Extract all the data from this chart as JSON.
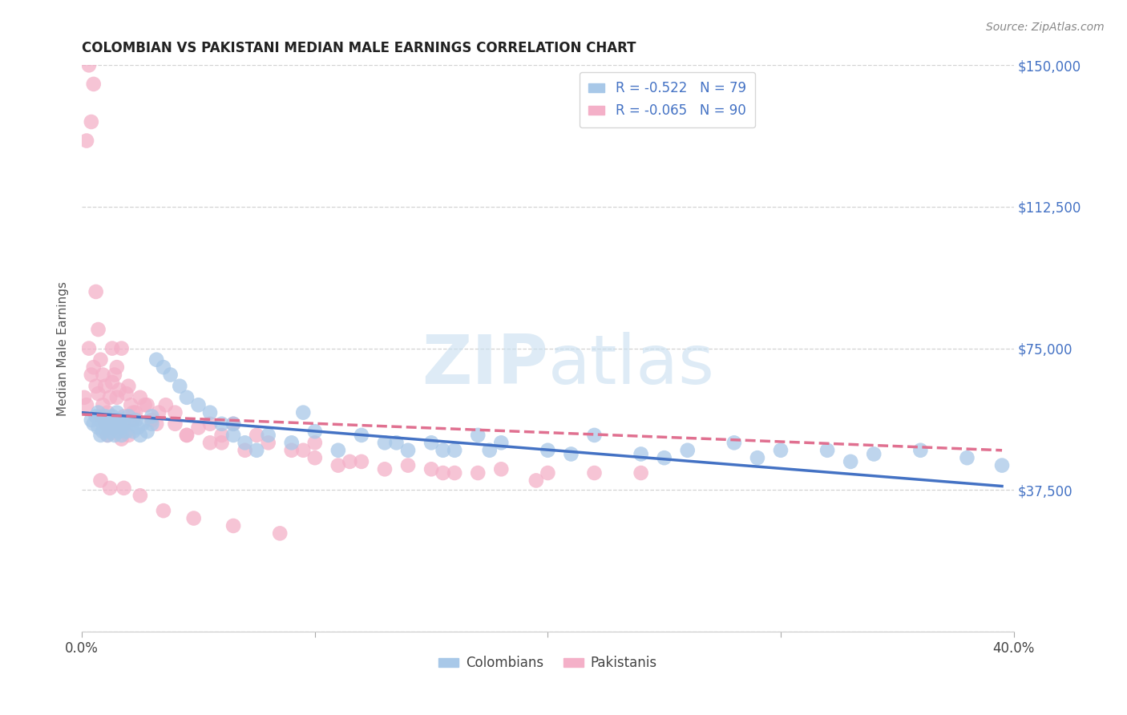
{
  "title": "COLOMBIAN VS PAKISTANI MEDIAN MALE EARNINGS CORRELATION CHART",
  "source": "Source: ZipAtlas.com",
  "ylabel": "Median Male Earnings",
  "xlim": [
    0.0,
    0.4
  ],
  "ylim": [
    0,
    150000
  ],
  "yticks": [
    0,
    37500,
    75000,
    112500,
    150000
  ],
  "ytick_labels": [
    "",
    "$37,500",
    "$75,000",
    "$112,500",
    "$150,000"
  ],
  "xticks": [
    0.0,
    0.1,
    0.2,
    0.3,
    0.4
  ],
  "xtick_labels": [
    "0.0%",
    "",
    "",
    "",
    "40.0%"
  ],
  "legend_r_labels": [
    "R = -0.522   N = 79",
    "R = -0.065   N = 90"
  ],
  "legend_bottom_labels": [
    "Colombians",
    "Pakistanis"
  ],
  "colombian_color": "#a8c8e8",
  "pakistani_color": "#f4b0c8",
  "colombian_line_color": "#4472c4",
  "pakistani_line_color": "#e07090",
  "background_color": "#ffffff",
  "grid_color": "#c8c8c8",
  "watermark_color": "#c8dff0",
  "colombian_scatter_x": [
    0.004,
    0.005,
    0.006,
    0.007,
    0.007,
    0.008,
    0.008,
    0.009,
    0.009,
    0.01,
    0.01,
    0.011,
    0.011,
    0.012,
    0.012,
    0.013,
    0.013,
    0.014,
    0.014,
    0.015,
    0.015,
    0.016,
    0.016,
    0.017,
    0.017,
    0.018,
    0.019,
    0.02,
    0.021,
    0.022,
    0.023,
    0.024,
    0.025,
    0.026,
    0.028,
    0.03,
    0.032,
    0.035,
    0.038,
    0.042,
    0.045,
    0.05,
    0.055,
    0.06,
    0.065,
    0.07,
    0.075,
    0.08,
    0.09,
    0.1,
    0.11,
    0.12,
    0.13,
    0.14,
    0.15,
    0.16,
    0.17,
    0.18,
    0.2,
    0.22,
    0.24,
    0.26,
    0.28,
    0.3,
    0.32,
    0.34,
    0.36,
    0.38,
    0.395,
    0.03,
    0.065,
    0.095,
    0.135,
    0.155,
    0.175,
    0.21,
    0.25,
    0.29,
    0.33
  ],
  "colombian_scatter_y": [
    56000,
    55000,
    57000,
    58000,
    54000,
    56000,
    52000,
    55000,
    53000,
    57000,
    54000,
    56000,
    52000,
    55000,
    53000,
    57000,
    54000,
    56000,
    52000,
    58000,
    55000,
    53000,
    56000,
    54000,
    52000,
    55000,
    53000,
    57000,
    55000,
    53000,
    56000,
    54000,
    52000,
    55000,
    53000,
    57000,
    72000,
    70000,
    68000,
    65000,
    62000,
    60000,
    58000,
    55000,
    52000,
    50000,
    48000,
    52000,
    50000,
    53000,
    48000,
    52000,
    50000,
    48000,
    50000,
    48000,
    52000,
    50000,
    48000,
    52000,
    47000,
    48000,
    50000,
    48000,
    48000,
    47000,
    48000,
    46000,
    44000,
    55000,
    55000,
    58000,
    50000,
    48000,
    48000,
    47000,
    46000,
    46000,
    45000
  ],
  "pakistani_scatter_x": [
    0.001,
    0.002,
    0.002,
    0.003,
    0.003,
    0.004,
    0.004,
    0.005,
    0.005,
    0.006,
    0.006,
    0.007,
    0.007,
    0.008,
    0.008,
    0.009,
    0.009,
    0.01,
    0.01,
    0.011,
    0.011,
    0.012,
    0.012,
    0.013,
    0.013,
    0.014,
    0.014,
    0.015,
    0.015,
    0.016,
    0.016,
    0.017,
    0.017,
    0.018,
    0.018,
    0.019,
    0.02,
    0.021,
    0.022,
    0.023,
    0.025,
    0.027,
    0.03,
    0.033,
    0.036,
    0.04,
    0.045,
    0.05,
    0.055,
    0.06,
    0.065,
    0.07,
    0.08,
    0.09,
    0.1,
    0.11,
    0.12,
    0.13,
    0.14,
    0.15,
    0.16,
    0.17,
    0.18,
    0.2,
    0.22,
    0.24,
    0.008,
    0.012,
    0.018,
    0.025,
    0.035,
    0.048,
    0.065,
    0.085,
    0.015,
    0.022,
    0.032,
    0.045,
    0.06,
    0.095,
    0.115,
    0.155,
    0.195,
    0.013,
    0.02,
    0.028,
    0.04,
    0.055,
    0.075,
    0.1
  ],
  "pakistani_scatter_y": [
    62000,
    60000,
    130000,
    75000,
    150000,
    68000,
    135000,
    70000,
    145000,
    65000,
    90000,
    63000,
    80000,
    57000,
    72000,
    60000,
    68000,
    55000,
    65000,
    58000,
    52000,
    56000,
    62000,
    53000,
    66000,
    54000,
    68000,
    56000,
    70000,
    53000,
    64000,
    51000,
    75000,
    57000,
    55000,
    63000,
    52000,
    60000,
    56000,
    58000,
    62000,
    60000,
    56000,
    58000,
    60000,
    55000,
    52000,
    54000,
    50000,
    52000,
    55000,
    48000,
    50000,
    48000,
    46000,
    44000,
    45000,
    43000,
    44000,
    43000,
    42000,
    42000,
    43000,
    42000,
    42000,
    42000,
    40000,
    38000,
    38000,
    36000,
    32000,
    30000,
    28000,
    26000,
    62000,
    58000,
    55000,
    52000,
    50000,
    48000,
    45000,
    42000,
    40000,
    75000,
    65000,
    60000,
    58000,
    55000,
    52000,
    50000
  ],
  "colombian_trend_x": [
    0.0,
    0.395
  ],
  "colombian_trend_y": [
    58000,
    38500
  ],
  "pakistani_trend_x": [
    0.0,
    0.395
  ],
  "pakistani_trend_y": [
    57500,
    48000
  ]
}
